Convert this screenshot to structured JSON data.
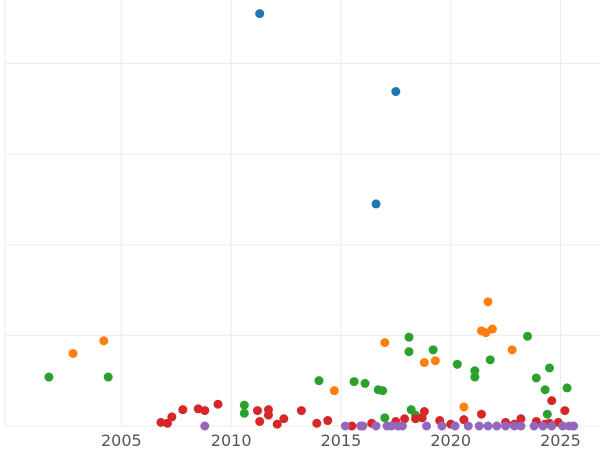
{
  "chart_data": {
    "type": "scatter",
    "title": "",
    "xlabel": "",
    "ylabel": "",
    "xlim": [
      1999.7,
      2026.8
    ],
    "ylim": [
      0,
      470
    ],
    "x_ticks": [
      2005,
      2010,
      2015,
      2020,
      2025
    ],
    "x_tick_labels": [
      "2005",
      "2010",
      "2015",
      "2020",
      "2025"
    ],
    "y_gridlines": [
      0,
      100,
      200,
      300,
      400
    ],
    "grid": true,
    "legend": "none",
    "series": [
      {
        "color": "#1f77b4",
        "points": [
          [
            2011.3,
            455
          ],
          [
            2017.5,
            369
          ],
          [
            2016.6,
            245
          ]
        ]
      },
      {
        "color": "#ff7f0e",
        "points": [
          [
            2002.8,
            80
          ],
          [
            2004.2,
            94
          ],
          [
            2014.7,
            39
          ],
          [
            2017.0,
            92
          ],
          [
            2018.8,
            70
          ],
          [
            2019.3,
            72
          ],
          [
            2020.6,
            21
          ],
          [
            2021.4,
            105
          ],
          [
            2021.6,
            103
          ],
          [
            2021.7,
            137
          ],
          [
            2021.9,
            107
          ],
          [
            2022.8,
            84
          ]
        ]
      },
      {
        "color": "#2ca02c",
        "points": [
          [
            2001.7,
            54
          ],
          [
            2004.4,
            54
          ],
          [
            2010.6,
            14
          ],
          [
            2010.6,
            23
          ],
          [
            2014.0,
            50
          ],
          [
            2015.6,
            49
          ],
          [
            2016.1,
            47
          ],
          [
            2016.7,
            40
          ],
          [
            2016.9,
            39
          ],
          [
            2017.0,
            9
          ],
          [
            2018.1,
            98
          ],
          [
            2018.1,
            82
          ],
          [
            2018.2,
            18
          ],
          [
            2018.4,
            12
          ],
          [
            2019.2,
            84
          ],
          [
            2020.3,
            68
          ],
          [
            2021.1,
            61
          ],
          [
            2021.1,
            54
          ],
          [
            2021.8,
            73
          ],
          [
            2023.5,
            99
          ],
          [
            2023.9,
            53
          ],
          [
            2024.3,
            40
          ],
          [
            2024.5,
            64
          ],
          [
            2024.4,
            13
          ],
          [
            2025.3,
            42
          ]
        ]
      },
      {
        "color": "#d62728",
        "points": [
          [
            2006.8,
            4
          ],
          [
            2007.1,
            3
          ],
          [
            2007.3,
            10
          ],
          [
            2007.8,
            18
          ],
          [
            2008.5,
            19
          ],
          [
            2008.8,
            17
          ],
          [
            2009.4,
            24
          ],
          [
            2011.2,
            17
          ],
          [
            2011.3,
            5
          ],
          [
            2011.7,
            12
          ],
          [
            2011.7,
            18
          ],
          [
            2012.1,
            2
          ],
          [
            2012.4,
            8
          ],
          [
            2013.2,
            17
          ],
          [
            2013.9,
            3
          ],
          [
            2014.4,
            6
          ],
          [
            2015.5,
            0
          ],
          [
            2016.4,
            3
          ],
          [
            2017.5,
            5
          ],
          [
            2017.9,
            8
          ],
          [
            2018.4,
            8
          ],
          [
            2018.7,
            9
          ],
          [
            2018.8,
            16
          ],
          [
            2019.5,
            6
          ],
          [
            2020.0,
            2
          ],
          [
            2020.6,
            7
          ],
          [
            2021.4,
            13
          ],
          [
            2022.5,
            4
          ],
          [
            2022.9,
            2
          ],
          [
            2023.2,
            8
          ],
          [
            2023.9,
            5
          ],
          [
            2024.3,
            2
          ],
          [
            2024.5,
            3
          ],
          [
            2024.6,
            28
          ],
          [
            2024.9,
            4
          ],
          [
            2025.2,
            17
          ]
        ]
      },
      {
        "color": "#9467bd",
        "points": [
          [
            2008.8,
            0
          ],
          [
            2015.2,
            0
          ],
          [
            2015.9,
            0
          ],
          [
            2016.0,
            0
          ],
          [
            2016.6,
            0
          ],
          [
            2017.1,
            0
          ],
          [
            2017.3,
            0
          ],
          [
            2017.6,
            0
          ],
          [
            2017.8,
            0
          ],
          [
            2018.9,
            0
          ],
          [
            2019.6,
            0
          ],
          [
            2020.2,
            0
          ],
          [
            2020.8,
            0
          ],
          [
            2021.3,
            0
          ],
          [
            2021.7,
            0
          ],
          [
            2022.1,
            0
          ],
          [
            2022.5,
            0
          ],
          [
            2022.9,
            0
          ],
          [
            2023.2,
            0
          ],
          [
            2023.8,
            0
          ],
          [
            2024.2,
            0
          ],
          [
            2024.6,
            0
          ],
          [
            2025.1,
            0
          ],
          [
            2025.4,
            0
          ],
          [
            2025.6,
            0
          ]
        ]
      }
    ]
  }
}
